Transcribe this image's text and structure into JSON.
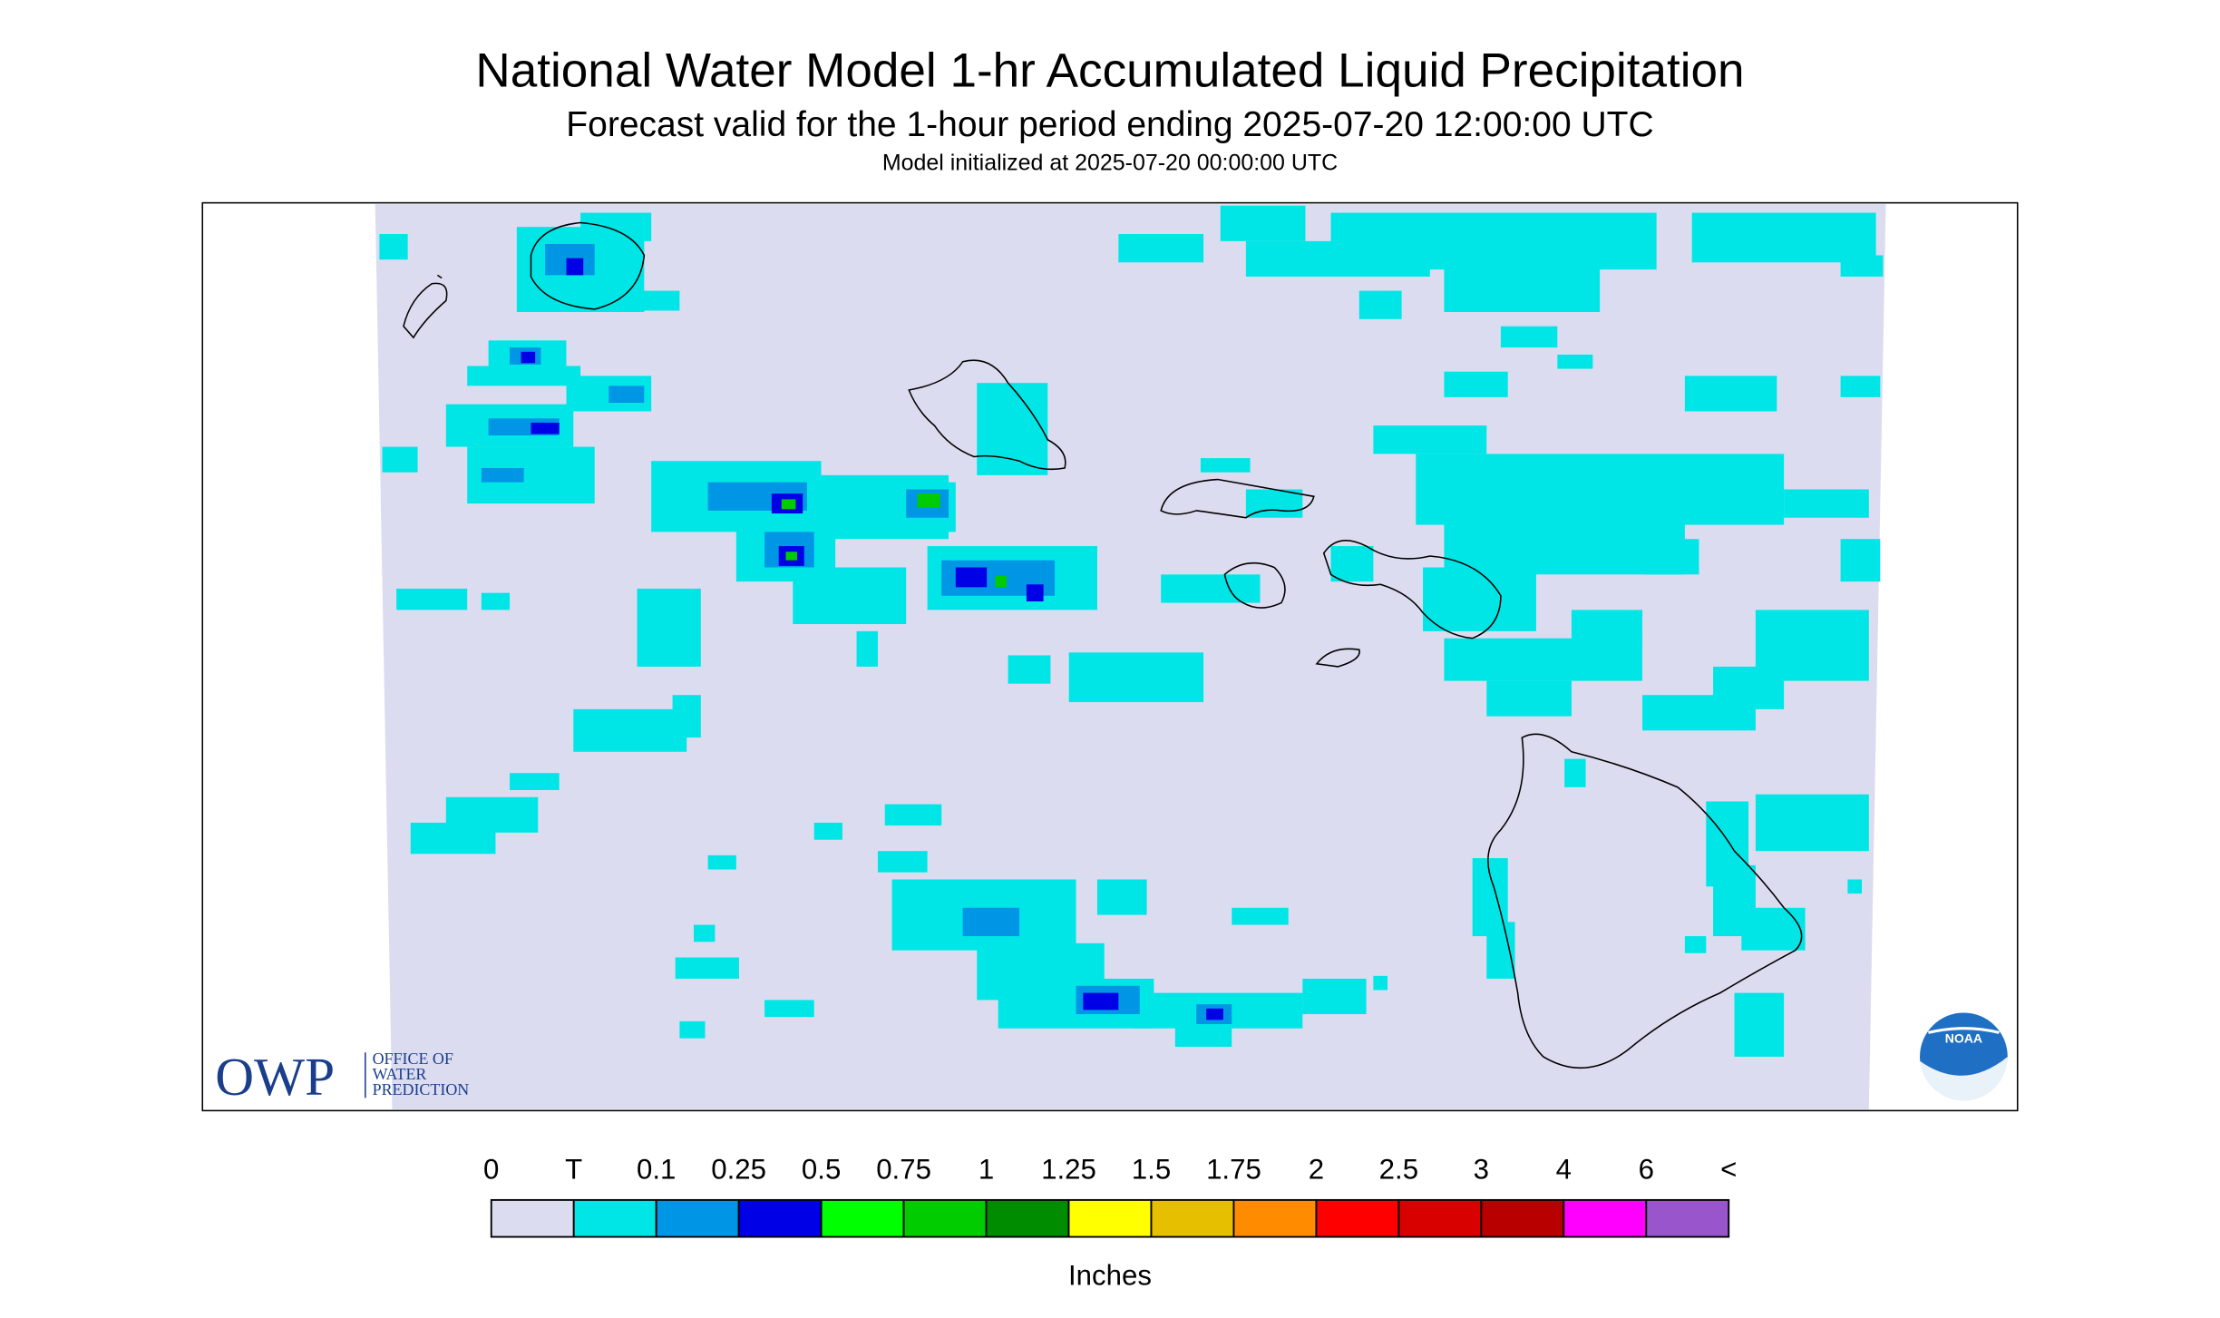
{
  "header": {
    "title": "National Water Model 1-hr Accumulated Liquid Precipitation",
    "subtitle": "Forecast valid for the 1-hour period ending 2025-07-20 12:00:00 UTC",
    "initialized": "Model initialized at 2025-07-20 00:00:00 UTC"
  },
  "legend": {
    "labels": [
      "0",
      "T",
      "0.1",
      "0.25",
      "0.5",
      "0.75",
      "1",
      "1.25",
      "1.5",
      "1.75",
      "2",
      "2.5",
      "3",
      "4",
      "6",
      "<"
    ],
    "colors": [
      "#dcdcf0",
      "#00e6e6",
      "#0096e6",
      "#0000e6",
      "#00ff00",
      "#00cc00",
      "#008c00",
      "#ffff00",
      "#e6c000",
      "#ff8c00",
      "#ff0000",
      "#d90000",
      "#b80000",
      "#ff00ff",
      "#9955cc"
    ],
    "unit": "Inches"
  },
  "logos": {
    "owp": "OWP",
    "owp_lines": [
      "OFFICE OF",
      "WATER",
      "PREDICTION"
    ],
    "noaa": "NOAA"
  }
}
